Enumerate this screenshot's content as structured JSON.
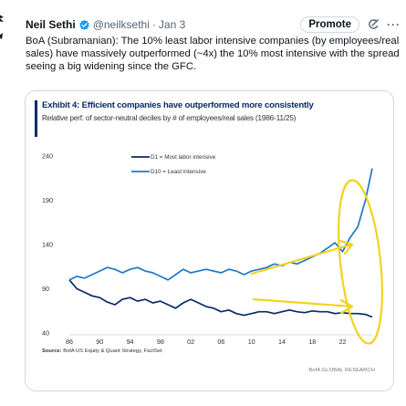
{
  "tweet": {
    "author_name": "Neil Sethi",
    "handle": "@neilksethi",
    "separator": "·",
    "date": "Jan 3",
    "promote_label": "Promote",
    "more_label": "···",
    "text": "BoA (Subramanian): The 10% least labor intensive companies (by employees/real sales) have massively outperformed (~4x) the 10% most intensive with the spread seeing a big widening since the GFC."
  },
  "exhibit": {
    "title": "Exhibit 4: Efficient companies have outperformed more consistently",
    "subtitle": "Relative perf. of sector-neutral deciles by # of employees/real sales (1986-11/25)",
    "source_bold": "Source:",
    "source_text": " BofA US Equity & Quant Strategy, FactSet",
    "watermark": "BofA GLOBAL RESEARCH"
  },
  "colors": {
    "d1": "#0a2a66",
    "d10": "#1e78c8",
    "annotation": "#f2d21f",
    "verified": "#1d9bf0"
  },
  "chart_data": {
    "type": "line",
    "title": "Exhibit 4: Efficient companies have outperformed more consistently",
    "xlabel": "",
    "ylabel": "",
    "xlim": [
      1986,
      2025.9
    ],
    "ylim": [
      40,
      240
    ],
    "y_ticks": [
      40,
      90,
      140,
      190,
      240
    ],
    "x_tick_labels": [
      "86",
      "90",
      "94",
      "98",
      "02",
      "06",
      "10",
      "14",
      "18",
      "22"
    ],
    "x_tick_years": [
      1986,
      1990,
      1994,
      1998,
      2002,
      2006,
      2010,
      2014,
      2018,
      2022
    ],
    "legend_position": "top",
    "series": [
      {
        "name": "D1 = Most labor intensive",
        "x": [
          1986,
          1987,
          1988,
          1989,
          1990,
          1991,
          1992,
          1993,
          1994,
          1995,
          1996,
          1997,
          1998,
          1999,
          2000,
          2001,
          2002,
          2003,
          2004,
          2005,
          2006,
          2007,
          2008,
          2009,
          2010,
          2011,
          2012,
          2013,
          2014,
          2015,
          2016,
          2017,
          2018,
          2019,
          2020,
          2021,
          2022,
          2023,
          2024,
          2025,
          2025.9
        ],
        "y": [
          100,
          90,
          86,
          82,
          80,
          75,
          72,
          78,
          80,
          76,
          78,
          74,
          76,
          72,
          68,
          74,
          78,
          74,
          70,
          68,
          64,
          66,
          62,
          60,
          62,
          64,
          64,
          62,
          64,
          66,
          64,
          63,
          65,
          64,
          64,
          62,
          63,
          62,
          62,
          61,
          58
        ]
      },
      {
        "name": "D10 = Least intensive",
        "x": [
          1986,
          1987,
          1988,
          1989,
          1990,
          1991,
          1992,
          1993,
          1994,
          1995,
          1996,
          1997,
          1998,
          1999,
          2000,
          2001,
          2002,
          2003,
          2004,
          2005,
          2006,
          2007,
          2008,
          2009,
          2010,
          2011,
          2012,
          2013,
          2014,
          2015,
          2016,
          2017,
          2018,
          2019,
          2020,
          2021,
          2022,
          2023,
          2024,
          2025,
          2025.9
        ],
        "y": [
          100,
          104,
          102,
          106,
          110,
          114,
          112,
          108,
          112,
          114,
          110,
          108,
          104,
          100,
          106,
          112,
          108,
          110,
          112,
          110,
          108,
          112,
          110,
          106,
          110,
          112,
          114,
          118,
          116,
          120,
          118,
          122,
          126,
          130,
          136,
          142,
          132,
          148,
          160,
          190,
          226
        ]
      }
    ]
  }
}
